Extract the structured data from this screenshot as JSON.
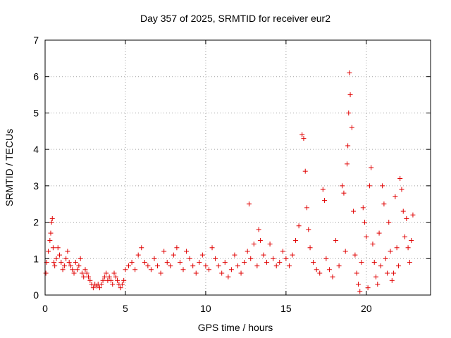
{
  "chart_data": {
    "type": "scatter",
    "title": "Day 357 of 2025, SRMTID for receiver eur2",
    "xlabel": "GPS time / hours",
    "ylabel": "SRMTID / TECUs",
    "xlim": [
      0,
      24
    ],
    "ylim": [
      0,
      7
    ],
    "xticks": [
      0,
      5,
      10,
      15,
      20
    ],
    "yticks": [
      0,
      1,
      2,
      3,
      4,
      5,
      6,
      7
    ],
    "xtick_labels": [
      "0",
      "5",
      "10",
      "15",
      "20"
    ],
    "ytick_labels": [
      "0",
      "1",
      "2",
      "3",
      "4",
      "5",
      "6",
      "7"
    ],
    "grid": true,
    "marker": "+",
    "color": "#e00000",
    "series": [
      {
        "name": "SRMTID",
        "x": [
          0.05,
          0.1,
          0.2,
          0.3,
          0.35,
          0.4,
          0.45,
          0.5,
          0.55,
          0.6,
          0.7,
          0.8,
          0.9,
          1.0,
          1.1,
          1.2,
          1.3,
          1.4,
          1.5,
          1.6,
          1.7,
          1.8,
          1.9,
          2.0,
          2.1,
          2.2,
          2.3,
          2.4,
          2.5,
          2.6,
          2.7,
          2.8,
          2.9,
          3.0,
          3.1,
          3.2,
          3.3,
          3.4,
          3.5,
          3.6,
          3.7,
          3.8,
          3.9,
          4.0,
          4.1,
          4.2,
          4.3,
          4.4,
          4.5,
          4.6,
          4.7,
          4.8,
          4.9,
          5.0,
          5.2,
          5.4,
          5.6,
          5.8,
          6.0,
          6.2,
          6.4,
          6.6,
          6.8,
          7.0,
          7.2,
          7.4,
          7.6,
          7.8,
          8.0,
          8.2,
          8.4,
          8.6,
          8.8,
          9.0,
          9.2,
          9.4,
          9.6,
          9.8,
          10.0,
          10.2,
          10.4,
          10.6,
          10.8,
          11.0,
          11.2,
          11.4,
          11.6,
          11.8,
          12.0,
          12.2,
          12.4,
          12.6,
          12.7,
          12.8,
          13.0,
          13.2,
          13.3,
          13.4,
          13.6,
          13.8,
          14.0,
          14.2,
          14.4,
          14.6,
          14.8,
          15.0,
          15.2,
          15.4,
          15.6,
          15.8,
          16.0,
          16.1,
          16.2,
          16.3,
          16.4,
          16.5,
          16.7,
          16.9,
          17.1,
          17.3,
          17.4,
          17.5,
          17.7,
          17.9,
          18.1,
          18.3,
          18.5,
          18.6,
          18.7,
          18.8,
          18.85,
          18.9,
          18.95,
          19.0,
          19.1,
          19.2,
          19.3,
          19.4,
          19.5,
          19.6,
          19.7,
          19.8,
          19.9,
          20.0,
          20.1,
          20.2,
          20.3,
          20.4,
          20.5,
          20.6,
          20.7,
          20.8,
          20.9,
          21.0,
          21.1,
          21.2,
          21.3,
          21.4,
          21.5,
          21.6,
          21.7,
          21.8,
          21.9,
          22.0,
          22.1,
          22.2,
          22.3,
          22.4,
          22.5,
          22.6,
          22.7,
          22.8,
          22.9
        ],
        "y": [
          0.6,
          0.9,
          1.2,
          1.5,
          1.7,
          2.0,
          2.1,
          1.3,
          0.9,
          0.8,
          1.0,
          1.3,
          1.1,
          0.9,
          0.7,
          0.8,
          1.0,
          1.2,
          0.9,
          0.8,
          0.7,
          0.6,
          0.9,
          0.7,
          0.8,
          1.0,
          0.6,
          0.5,
          0.7,
          0.6,
          0.5,
          0.4,
          0.3,
          0.2,
          0.3,
          0.25,
          0.3,
          0.2,
          0.3,
          0.4,
          0.5,
          0.6,
          0.4,
          0.5,
          0.4,
          0.3,
          0.6,
          0.5,
          0.4,
          0.3,
          0.2,
          0.3,
          0.4,
          0.7,
          0.8,
          0.9,
          0.7,
          1.1,
          1.3,
          0.9,
          0.8,
          0.7,
          1.0,
          0.8,
          0.6,
          1.2,
          0.9,
          0.8,
          1.1,
          1.3,
          0.9,
          0.7,
          1.2,
          1.0,
          0.8,
          0.6,
          0.9,
          1.1,
          0.8,
          0.7,
          1.3,
          1.0,
          0.8,
          0.6,
          0.9,
          0.5,
          0.7,
          1.1,
          0.8,
          0.6,
          0.9,
          1.2,
          2.5,
          1.0,
          1.4,
          0.8,
          1.8,
          1.5,
          1.1,
          0.9,
          1.4,
          1.0,
          0.8,
          0.9,
          1.2,
          1.0,
          0.8,
          1.1,
          1.5,
          1.9,
          4.4,
          4.3,
          3.4,
          2.4,
          1.8,
          1.3,
          0.9,
          0.7,
          0.6,
          2.9,
          2.6,
          1.0,
          0.7,
          0.5,
          1.5,
          0.8,
          3.0,
          2.8,
          1.2,
          3.6,
          4.1,
          5.0,
          6.1,
          5.5,
          4.6,
          2.3,
          1.1,
          0.6,
          0.3,
          0.1,
          0.9,
          2.4,
          2.0,
          1.6,
          0.2,
          3.0,
          3.5,
          1.4,
          0.9,
          0.5,
          0.3,
          1.7,
          0.8,
          3.0,
          2.5,
          1.0,
          0.6,
          2.0,
          1.2,
          0.4,
          0.6,
          2.7,
          1.3,
          0.8,
          3.2,
          2.9,
          2.3,
          1.6,
          2.1,
          1.3,
          0.9,
          1.5,
          2.2
        ]
      }
    ]
  }
}
